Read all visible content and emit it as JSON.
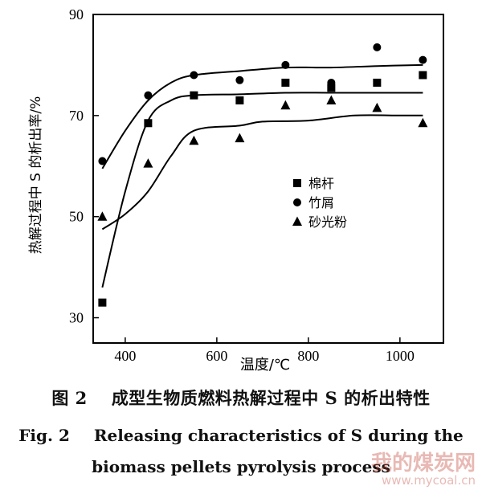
{
  "chart_data": {
    "type": "scatter",
    "title": "",
    "xlabel": "温度/℃",
    "ylabel": "热解过程中 S 的析出率/%",
    "xlim": [
      330,
      1095
    ],
    "ylim": [
      25,
      90
    ],
    "xticks": [
      400,
      600,
      800,
      1000
    ],
    "yticks": [
      30,
      50,
      70,
      90
    ],
    "legend_position": "right-middle",
    "series": [
      {
        "name": "棉杆",
        "marker": "square",
        "x": [
          350,
          450,
          550,
          650,
          750,
          850,
          950,
          1050
        ],
        "y": [
          33,
          68.5,
          74,
          73,
          76.5,
          75.5,
          76.5,
          78
        ],
        "curve": [
          [
            350,
            36
          ],
          [
            400,
            55
          ],
          [
            450,
            69
          ],
          [
            500,
            73
          ],
          [
            550,
            74
          ],
          [
            650,
            74.2
          ],
          [
            750,
            74.5
          ],
          [
            850,
            74.5
          ],
          [
            950,
            74.5
          ],
          [
            1050,
            74.5
          ]
        ]
      },
      {
        "name": "竹屑",
        "marker": "circle",
        "x": [
          350,
          450,
          550,
          650,
          750,
          850,
          950,
          1050
        ],
        "y": [
          61,
          74,
          78,
          77,
          80,
          76.5,
          83.5,
          81
        ],
        "curve": [
          [
            350,
            59.5
          ],
          [
            400,
            67
          ],
          [
            450,
            73
          ],
          [
            500,
            76.5
          ],
          [
            550,
            78
          ],
          [
            650,
            78.8
          ],
          [
            750,
            79.5
          ],
          [
            850,
            79.5
          ],
          [
            950,
            79.8
          ],
          [
            1050,
            80
          ]
        ]
      },
      {
        "name": "砂光粉",
        "marker": "triangle",
        "x": [
          350,
          450,
          550,
          650,
          750,
          850,
          950,
          1050
        ],
        "y": [
          50,
          60.5,
          65,
          65.5,
          72,
          73,
          71.5,
          68.5
        ],
        "curve": [
          [
            350,
            47.5
          ],
          [
            400,
            50.5
          ],
          [
            450,
            55
          ],
          [
            500,
            62
          ],
          [
            550,
            67
          ],
          [
            650,
            68
          ],
          [
            700,
            68.8
          ],
          [
            800,
            69
          ],
          [
            900,
            70
          ],
          [
            1000,
            70
          ],
          [
            1050,
            70
          ]
        ]
      }
    ]
  },
  "caption": {
    "cn_num": "图 2",
    "cn_title": "成型生物质燃料热解过程中 S 的析出特性",
    "en_num": "Fig. 2",
    "en_title_line1": "Releasing characteristics of S during the",
    "en_title_line2": "biomass pellets pyrolysis process"
  },
  "watermark": {
    "text": "我的煤炭网",
    "url": "www.mycoal.cn"
  }
}
